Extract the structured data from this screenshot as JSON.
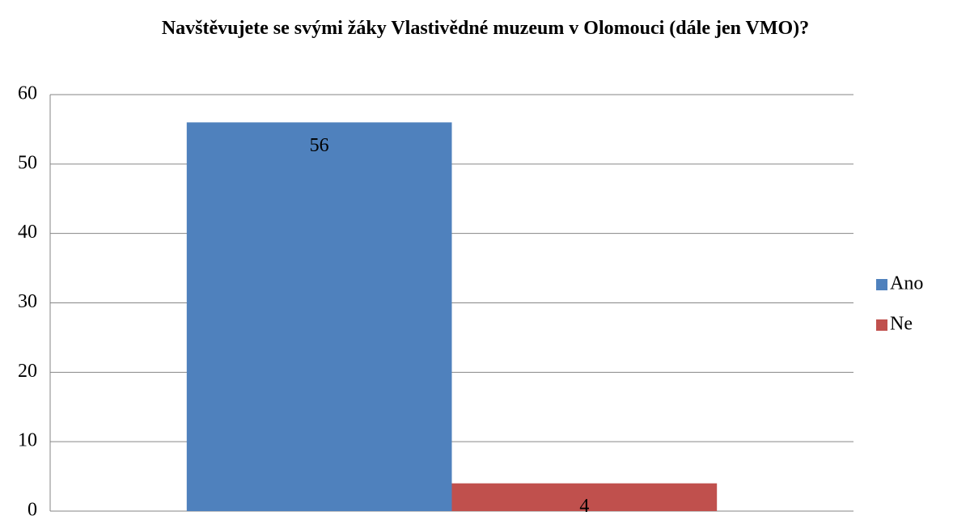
{
  "chart_data": {
    "type": "bar",
    "title": "Navštěvujete se svými žáky Vlastivědné muzeum v Olomouci (dále jen VMO)?",
    "categories": [
      null
    ],
    "series": [
      {
        "name": "Ano",
        "color": "#4f81bd",
        "values": [
          56
        ]
      },
      {
        "name": "Ne",
        "color": "#c0504d",
        "values": [
          4
        ]
      }
    ],
    "ylim": [
      0,
      60
    ],
    "yticks": [
      0,
      10,
      20,
      30,
      40,
      50,
      60
    ],
    "grid": true,
    "legend": "right"
  }
}
